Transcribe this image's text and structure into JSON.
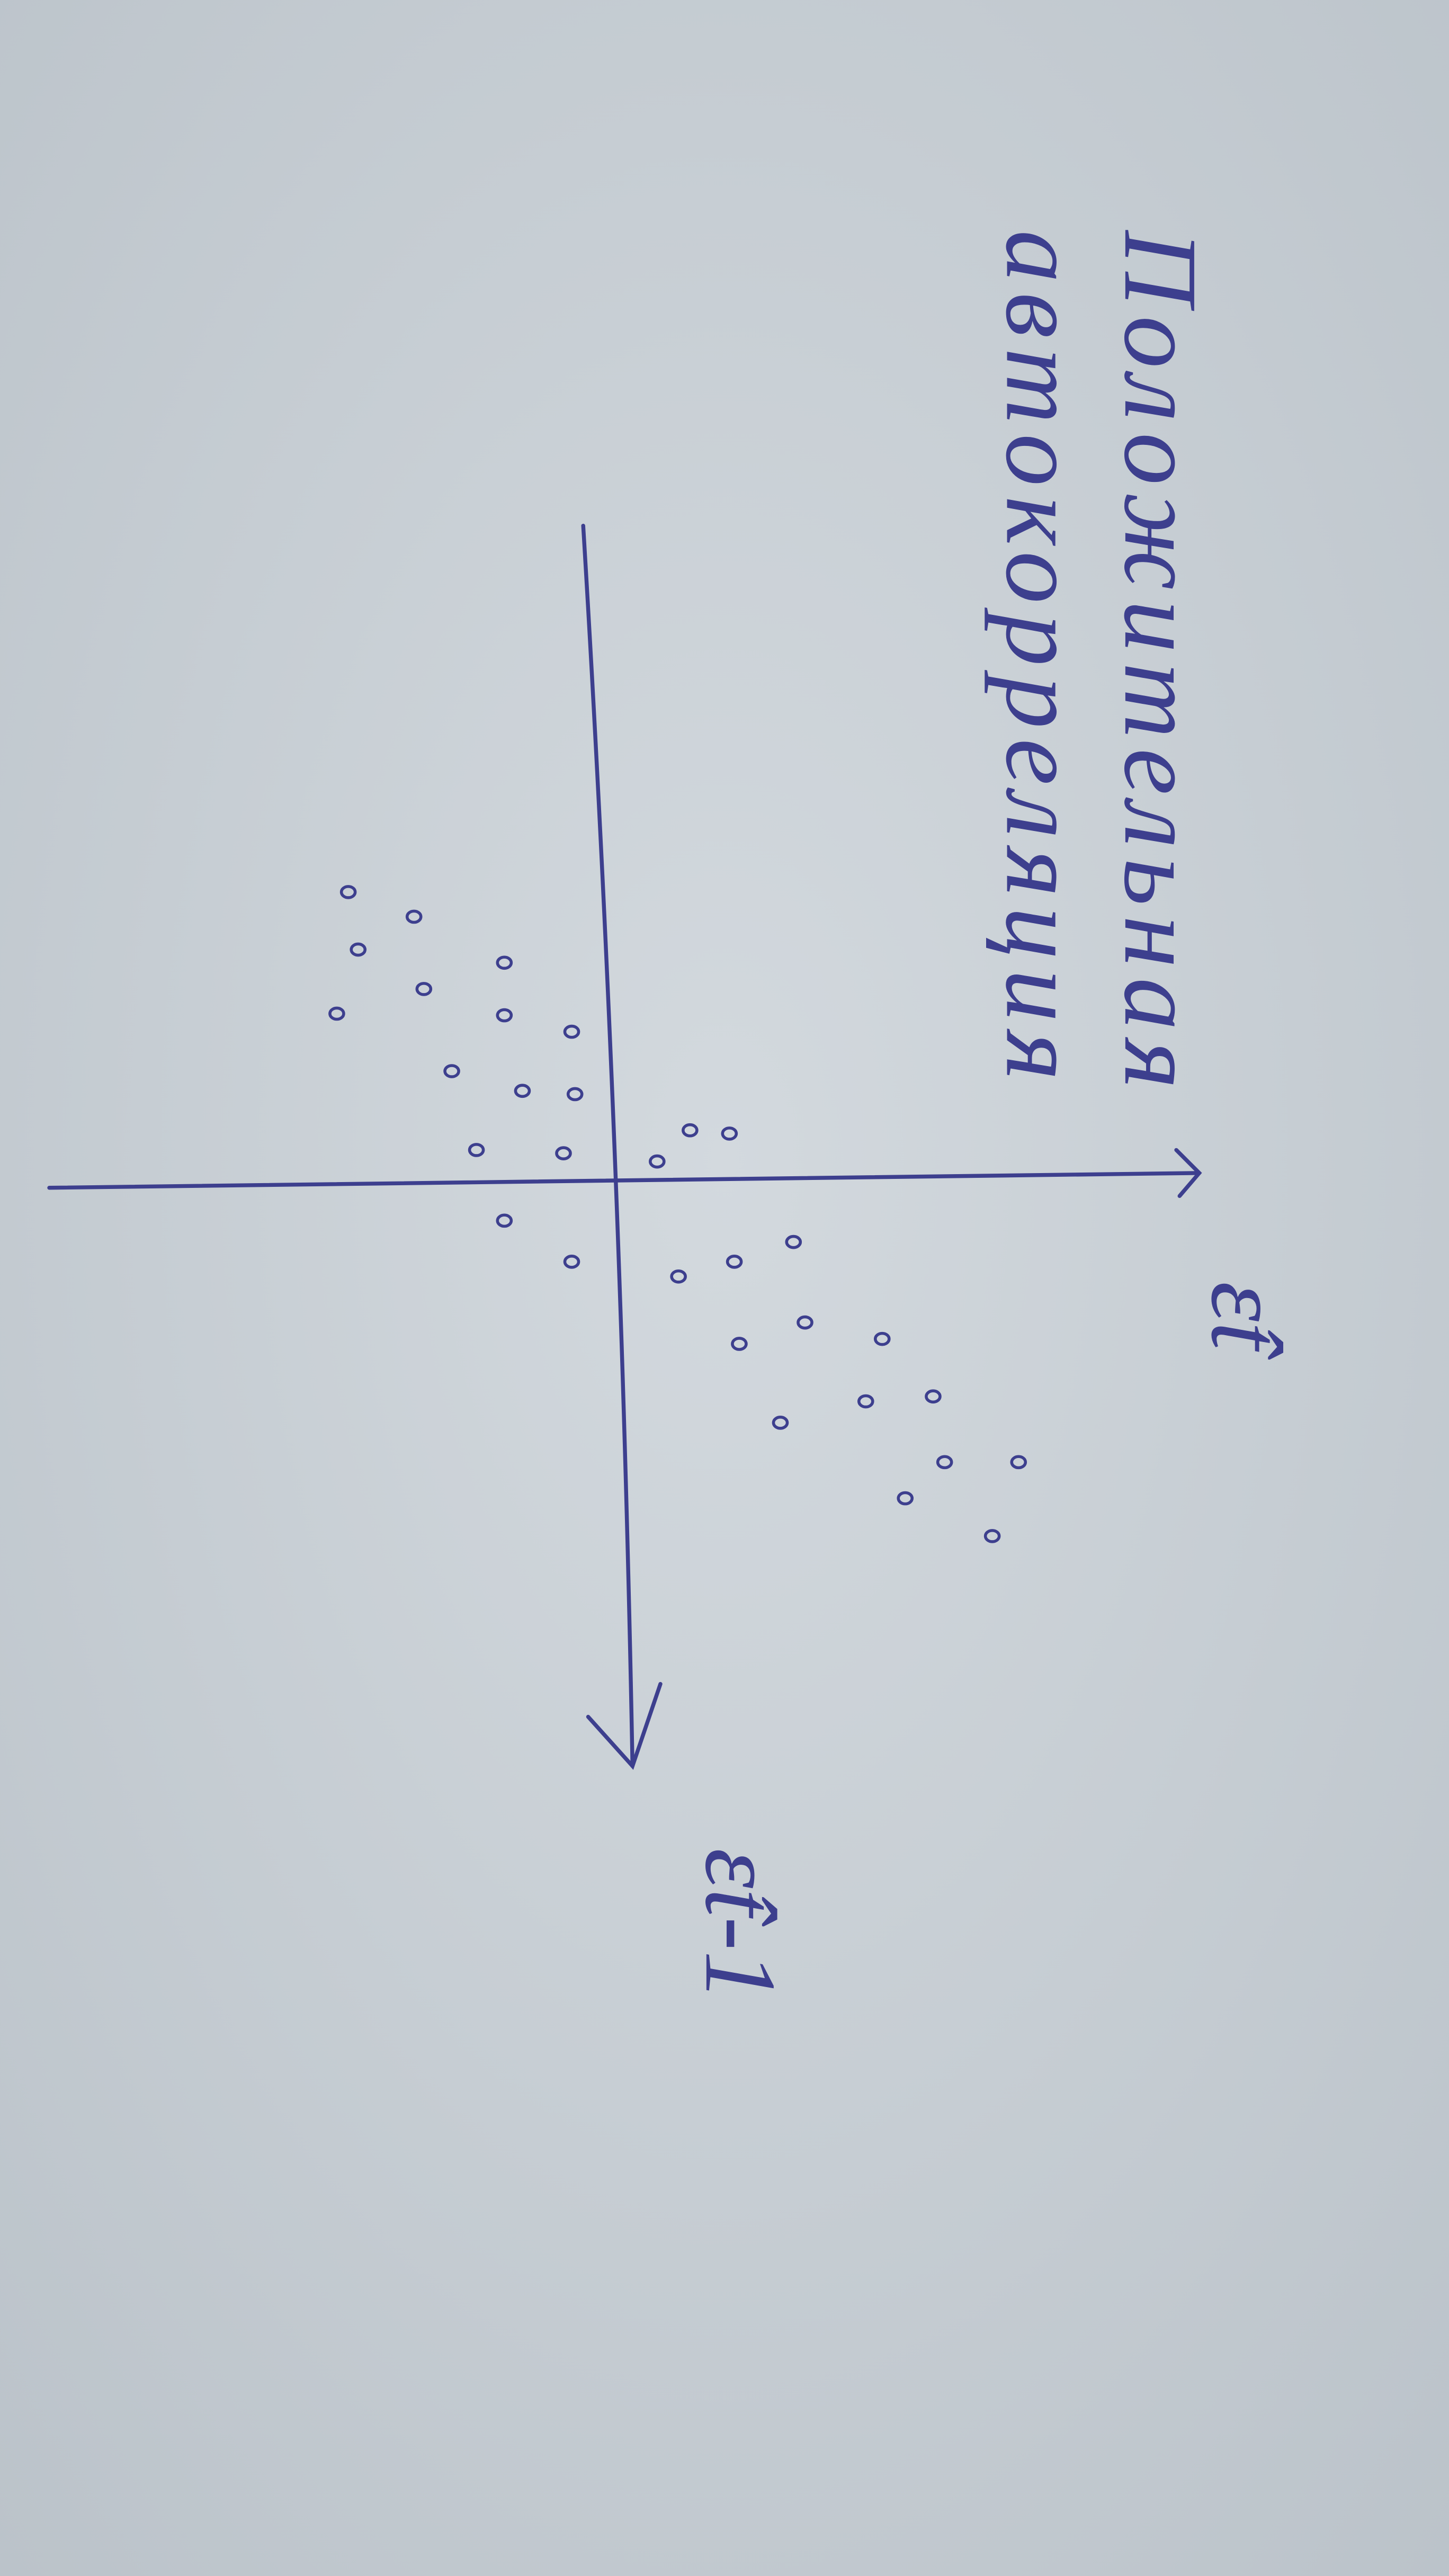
{
  "chart_data": {
    "type": "scatter",
    "title": "Положительная автокорреляция",
    "xlabel": "ε̂t-1",
    "ylabel": "ε̂t",
    "color": "#3d3f8e",
    "xlim": [
      -4,
      3.55
    ],
    "ylim": [
      -3.5,
      3.5
    ],
    "x": [
      -1.77,
      -1.62,
      -1.42,
      -1.18,
      -1.03,
      -1.34,
      -1.02,
      -0.92,
      -0.68,
      -0.56,
      -0.54,
      -0.2,
      -0.18,
      -0.32,
      -0.3,
      -0.13,
      0.23,
      0.48,
      0.57,
      0.48,
      0.36,
      0.85,
      0.98,
      0.95,
      1.33,
      1.3,
      1.46,
      1.7,
      1.7,
      1.92,
      2.15
    ],
    "values": [
      -1.68,
      -1.28,
      -1.62,
      -1.22,
      -1.75,
      -0.73,
      -0.73,
      -0.32,
      -1.05,
      -0.62,
      -0.3,
      -0.9,
      -0.37,
      0.4,
      0.64,
      0.2,
      -0.73,
      -0.32,
      0.33,
      0.67,
      1.03,
      1.1,
      0.7,
      1.57,
      1.47,
      1.88,
      0.95,
      1.95,
      2.4,
      1.71,
      2.24
    ]
  }
}
